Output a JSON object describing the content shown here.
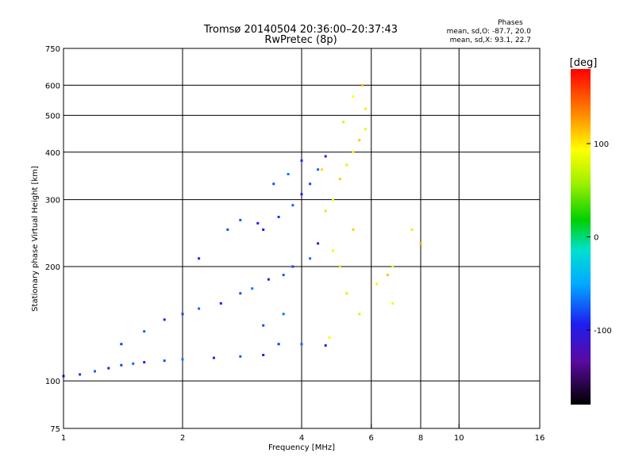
{
  "chart_data": {
    "type": "scatter",
    "title": "Tromsø 20140504 20:36:00–20:37:43",
    "subtitle": "RwPretec (8p)",
    "xlabel": "Frequency [MHz]",
    "ylabel": "Stationary phase Virtual Height [km]",
    "x_scale": "log",
    "y_scale": "log",
    "xlim": [
      1,
      16
    ],
    "ylim": [
      75,
      750
    ],
    "x_ticks": [
      1,
      2,
      4,
      6,
      8,
      10,
      16
    ],
    "y_ticks": [
      75,
      100,
      200,
      300,
      400,
      500,
      600,
      750
    ],
    "grid": true,
    "phase_box": {
      "heading": "Phases",
      "line1": "mean, sd,O: -87.7, 20.0",
      "line2": "mean, sd,X:  93.1, 22.7"
    },
    "colorbar": {
      "label": "[deg]",
      "range": [
        -180,
        180
      ],
      "ticks": [
        "100",
        "0",
        "-100"
      ],
      "tick_values": [
        100,
        0,
        -100
      ]
    },
    "series": [
      {
        "name": "O",
        "phase_mean": -87.7,
        "phase_sd": 20.0,
        "points": [
          [
            1.0,
            103
          ],
          [
            1.1,
            104
          ],
          [
            1.2,
            106
          ],
          [
            1.3,
            108
          ],
          [
            1.4,
            110
          ],
          [
            1.5,
            111
          ],
          [
            1.6,
            112
          ],
          [
            1.8,
            113
          ],
          [
            2.0,
            114
          ],
          [
            2.4,
            115
          ],
          [
            2.8,
            116
          ],
          [
            3.2,
            117
          ],
          [
            1.4,
            125
          ],
          [
            1.6,
            135
          ],
          [
            1.8,
            145
          ],
          [
            2.0,
            150
          ],
          [
            2.2,
            155
          ],
          [
            2.5,
            160
          ],
          [
            2.8,
            170
          ],
          [
            3.0,
            175
          ],
          [
            3.3,
            185
          ],
          [
            3.6,
            190
          ],
          [
            3.2,
            250
          ],
          [
            3.5,
            270
          ],
          [
            3.8,
            290
          ],
          [
            4.0,
            310
          ],
          [
            4.2,
            330
          ],
          [
            4.4,
            360
          ],
          [
            4.6,
            390
          ],
          [
            3.4,
            330
          ],
          [
            3.7,
            350
          ],
          [
            4.0,
            380
          ],
          [
            2.8,
            265
          ],
          [
            3.1,
            260
          ],
          [
            3.5,
            125
          ],
          [
            4.0,
            125
          ],
          [
            4.6,
            124
          ],
          [
            3.8,
            200
          ],
          [
            4.2,
            210
          ],
          [
            4.4,
            230
          ],
          [
            3.2,
            140
          ],
          [
            3.6,
            150
          ],
          [
            2.2,
            210
          ],
          [
            2.6,
            250
          ]
        ]
      },
      {
        "name": "X",
        "phase_mean": 93.1,
        "phase_sd": 22.7,
        "points": [
          [
            4.6,
            280
          ],
          [
            4.8,
            300
          ],
          [
            5.0,
            340
          ],
          [
            5.2,
            370
          ],
          [
            5.4,
            400
          ],
          [
            5.6,
            430
          ],
          [
            5.8,
            460
          ],
          [
            5.8,
            520
          ],
          [
            5.7,
            600
          ],
          [
            4.8,
            220
          ],
          [
            5.0,
            200
          ],
          [
            5.2,
            170
          ],
          [
            4.7,
            130
          ],
          [
            5.4,
            250
          ],
          [
            5.6,
            150
          ],
          [
            6.2,
            180
          ],
          [
            6.6,
            190
          ],
          [
            6.8,
            200
          ],
          [
            7.6,
            250
          ],
          [
            8.0,
            230
          ],
          [
            6.8,
            160
          ],
          [
            4.5,
            360
          ],
          [
            5.1,
            480
          ],
          [
            5.4,
            560
          ]
        ]
      }
    ]
  }
}
